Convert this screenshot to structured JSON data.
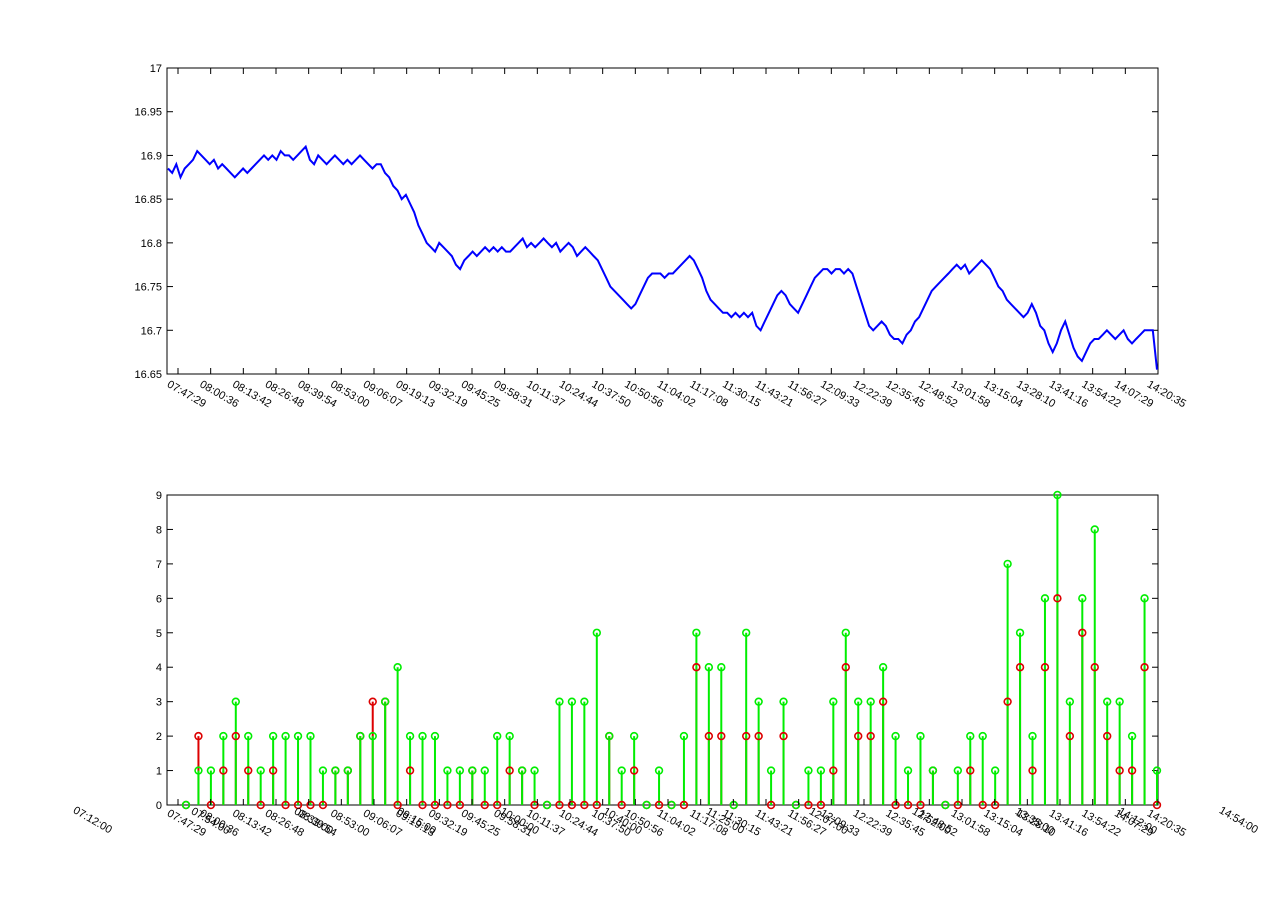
{
  "chart_data": [
    {
      "type": "line",
      "title": "",
      "xlabel": "",
      "ylabel": "",
      "grid": false,
      "line_color": "#0000ff",
      "ylim": [
        16.65,
        17
      ],
      "yticks": [
        "16.65",
        "16.7",
        "16.75",
        "16.8",
        "16.85",
        "16.9",
        "16.95",
        "17"
      ],
      "xticks": [
        "07:47:29",
        "08:00:36",
        "08:13:42",
        "08:26:48",
        "08:39:54",
        "08:53:00",
        "09:06:07",
        "09:19:13",
        "09:32:19",
        "09:45:25",
        "09:58:31",
        "10:11:37",
        "10:24:44",
        "10:37:50",
        "10:50:56",
        "11:04:02",
        "11:17:08",
        "11:30:15",
        "11:43:21",
        "11:56:27",
        "12:09:33",
        "12:22:39",
        "12:35:45",
        "12:48:52",
        "13:01:58",
        "13:15:04",
        "13:28:10",
        "13:41:16",
        "13:54:22",
        "14:07:29",
        "14:20:35"
      ],
      "series": [
        {
          "values": [
            16.885,
            16.88,
            16.89,
            16.875,
            16.885,
            16.89,
            16.895,
            16.905,
            16.9,
            16.895,
            16.89,
            16.895,
            16.885,
            16.89,
            16.885,
            16.88,
            16.875,
            16.88,
            16.885,
            16.88,
            16.885,
            16.89,
            16.895,
            16.9,
            16.895,
            16.9,
            16.895,
            16.905,
            16.9,
            16.9,
            16.895,
            16.9,
            16.905,
            16.91,
            16.895,
            16.89,
            16.9,
            16.895,
            16.89,
            16.895,
            16.9,
            16.895,
            16.89,
            16.895,
            16.89,
            16.895,
            16.9,
            16.895,
            16.89,
            16.885,
            16.89,
            16.89,
            16.88,
            16.875,
            16.865,
            16.86,
            16.85,
            16.855,
            16.845,
            16.835,
            16.82,
            16.81,
            16.8,
            16.795,
            16.79,
            16.8,
            16.795,
            16.79,
            16.785,
            16.775,
            16.77,
            16.78,
            16.785,
            16.79,
            16.785,
            16.79,
            16.795,
            16.79,
            16.795,
            16.79,
            16.795,
            16.79,
            16.79,
            16.795,
            16.8,
            16.805,
            16.795,
            16.8,
            16.795,
            16.8,
            16.805,
            16.8,
            16.795,
            16.8,
            16.79,
            16.795,
            16.8,
            16.795,
            16.785,
            16.79,
            16.795,
            16.79,
            16.785,
            16.78,
            16.77,
            16.76,
            16.75,
            16.745,
            16.74,
            16.735,
            16.73,
            16.725,
            16.73,
            16.74,
            16.75,
            16.76,
            16.765,
            16.765,
            16.765,
            16.76,
            16.765,
            16.765,
            16.77,
            16.775,
            16.78,
            16.785,
            16.78,
            16.77,
            16.76,
            16.745,
            16.735,
            16.73,
            16.725,
            16.72,
            16.72,
            16.715,
            16.72,
            16.715,
            16.72,
            16.715,
            16.72,
            16.705,
            16.7,
            16.71,
            16.72,
            16.73,
            16.74,
            16.745,
            16.74,
            16.73,
            16.725,
            16.72,
            16.73,
            16.74,
            16.75,
            16.76,
            16.765,
            16.77,
            16.77,
            16.765,
            16.77,
            16.77,
            16.765,
            16.77,
            16.765,
            16.75,
            16.735,
            16.72,
            16.705,
            16.7,
            16.705,
            16.71,
            16.705,
            16.695,
            16.69,
            16.69,
            16.685,
            16.695,
            16.7,
            16.71,
            16.715,
            16.725,
            16.735,
            16.745,
            16.75,
            16.755,
            16.76,
            16.765,
            16.77,
            16.775,
            16.77,
            16.775,
            16.765,
            16.77,
            16.775,
            16.78,
            16.775,
            16.77,
            16.76,
            16.75,
            16.745,
            16.735,
            16.73,
            16.725,
            16.72,
            16.715,
            16.72,
            16.73,
            16.72,
            16.705,
            16.7,
            16.685,
            16.675,
            16.685,
            16.7,
            16.71,
            16.695,
            16.68,
            16.67,
            16.665,
            16.675,
            16.685,
            16.69,
            16.69,
            16.695,
            16.7,
            16.695,
            16.69,
            16.695,
            16.7,
            16.69,
            16.685,
            16.69,
            16.695,
            16.7,
            16.7,
            16.7,
            16.655
          ]
        }
      ]
    },
    {
      "type": "stem",
      "title": "",
      "xlabel": "",
      "ylabel": "",
      "grid": false,
      "ylim": [
        0,
        9
      ],
      "yticks": [
        "0",
        "1",
        "2",
        "3",
        "4",
        "5",
        "6",
        "7",
        "8",
        "9"
      ],
      "xlim_labels": [
        "07:12:00",
        "14:54:00"
      ],
      "xticks": [
        "07:47:29",
        "08:00:36",
        "08:13:42",
        "08:26:48",
        "08:39:54",
        "08:53:00",
        "09:06:07",
        "09:19:13",
        "09:32:19",
        "09:45:25",
        "09:58:31",
        "10:11:37",
        "10:24:44",
        "10:37:50",
        "10:50:56",
        "11:04:02",
        "11:17:08",
        "11:30:15",
        "11:43:21",
        "11:56:27",
        "12:09:33",
        "12:22:39",
        "12:35:45",
        "12:48:52",
        "13:01:58",
        "13:15:04",
        "13:28:10",
        "13:41:16",
        "13:54:22",
        "14:07:29",
        "14:20:35"
      ],
      "extra_xticks": [
        "07:54:00",
        "08:33:00",
        "09:15:00",
        "10:00:00",
        "10:40:00",
        "11:25:00",
        "12:07:00",
        "12:52:00",
        "13:35:00",
        "14:12:00"
      ],
      "series": [
        {
          "name": "",
          "color": "#00ee00",
          "values": [
            0,
            1,
            1,
            2,
            3,
            2,
            1,
            2,
            2,
            2,
            2,
            1,
            1,
            1,
            2,
            2,
            3,
            4,
            2,
            2,
            2,
            1,
            1,
            1,
            1,
            2,
            2,
            1,
            1,
            0,
            3,
            3,
            3,
            5,
            2,
            1,
            2,
            0,
            1,
            0,
            2,
            5,
            4,
            4,
            0,
            5,
            3,
            1,
            3,
            0,
            1,
            1,
            3,
            5,
            3,
            3,
            4,
            2,
            1,
            2,
            1,
            0,
            1,
            2,
            2,
            1,
            7,
            5,
            2,
            6,
            9,
            3,
            6,
            8,
            3,
            3,
            2,
            6,
            1
          ]
        },
        {
          "name": "",
          "color": "#dd0000",
          "values": [
            0,
            2,
            0,
            1,
            2,
            1,
            0,
            1,
            0,
            0,
            0,
            0,
            1,
            1,
            2,
            3,
            3,
            0,
            1,
            0,
            0,
            0,
            0,
            1,
            0,
            0,
            1,
            1,
            0,
            0,
            0,
            0,
            0,
            0,
            2,
            0,
            1,
            0,
            0,
            0,
            0,
            4,
            2,
            2,
            0,
            2,
            2,
            0,
            2,
            0,
            0,
            0,
            1,
            4,
            2,
            2,
            3,
            0,
            0,
            0,
            1,
            0,
            0,
            1,
            0,
            0,
            3,
            4,
            1,
            4,
            6,
            2,
            5,
            4,
            2,
            1,
            1,
            4,
            0
          ]
        }
      ]
    }
  ]
}
